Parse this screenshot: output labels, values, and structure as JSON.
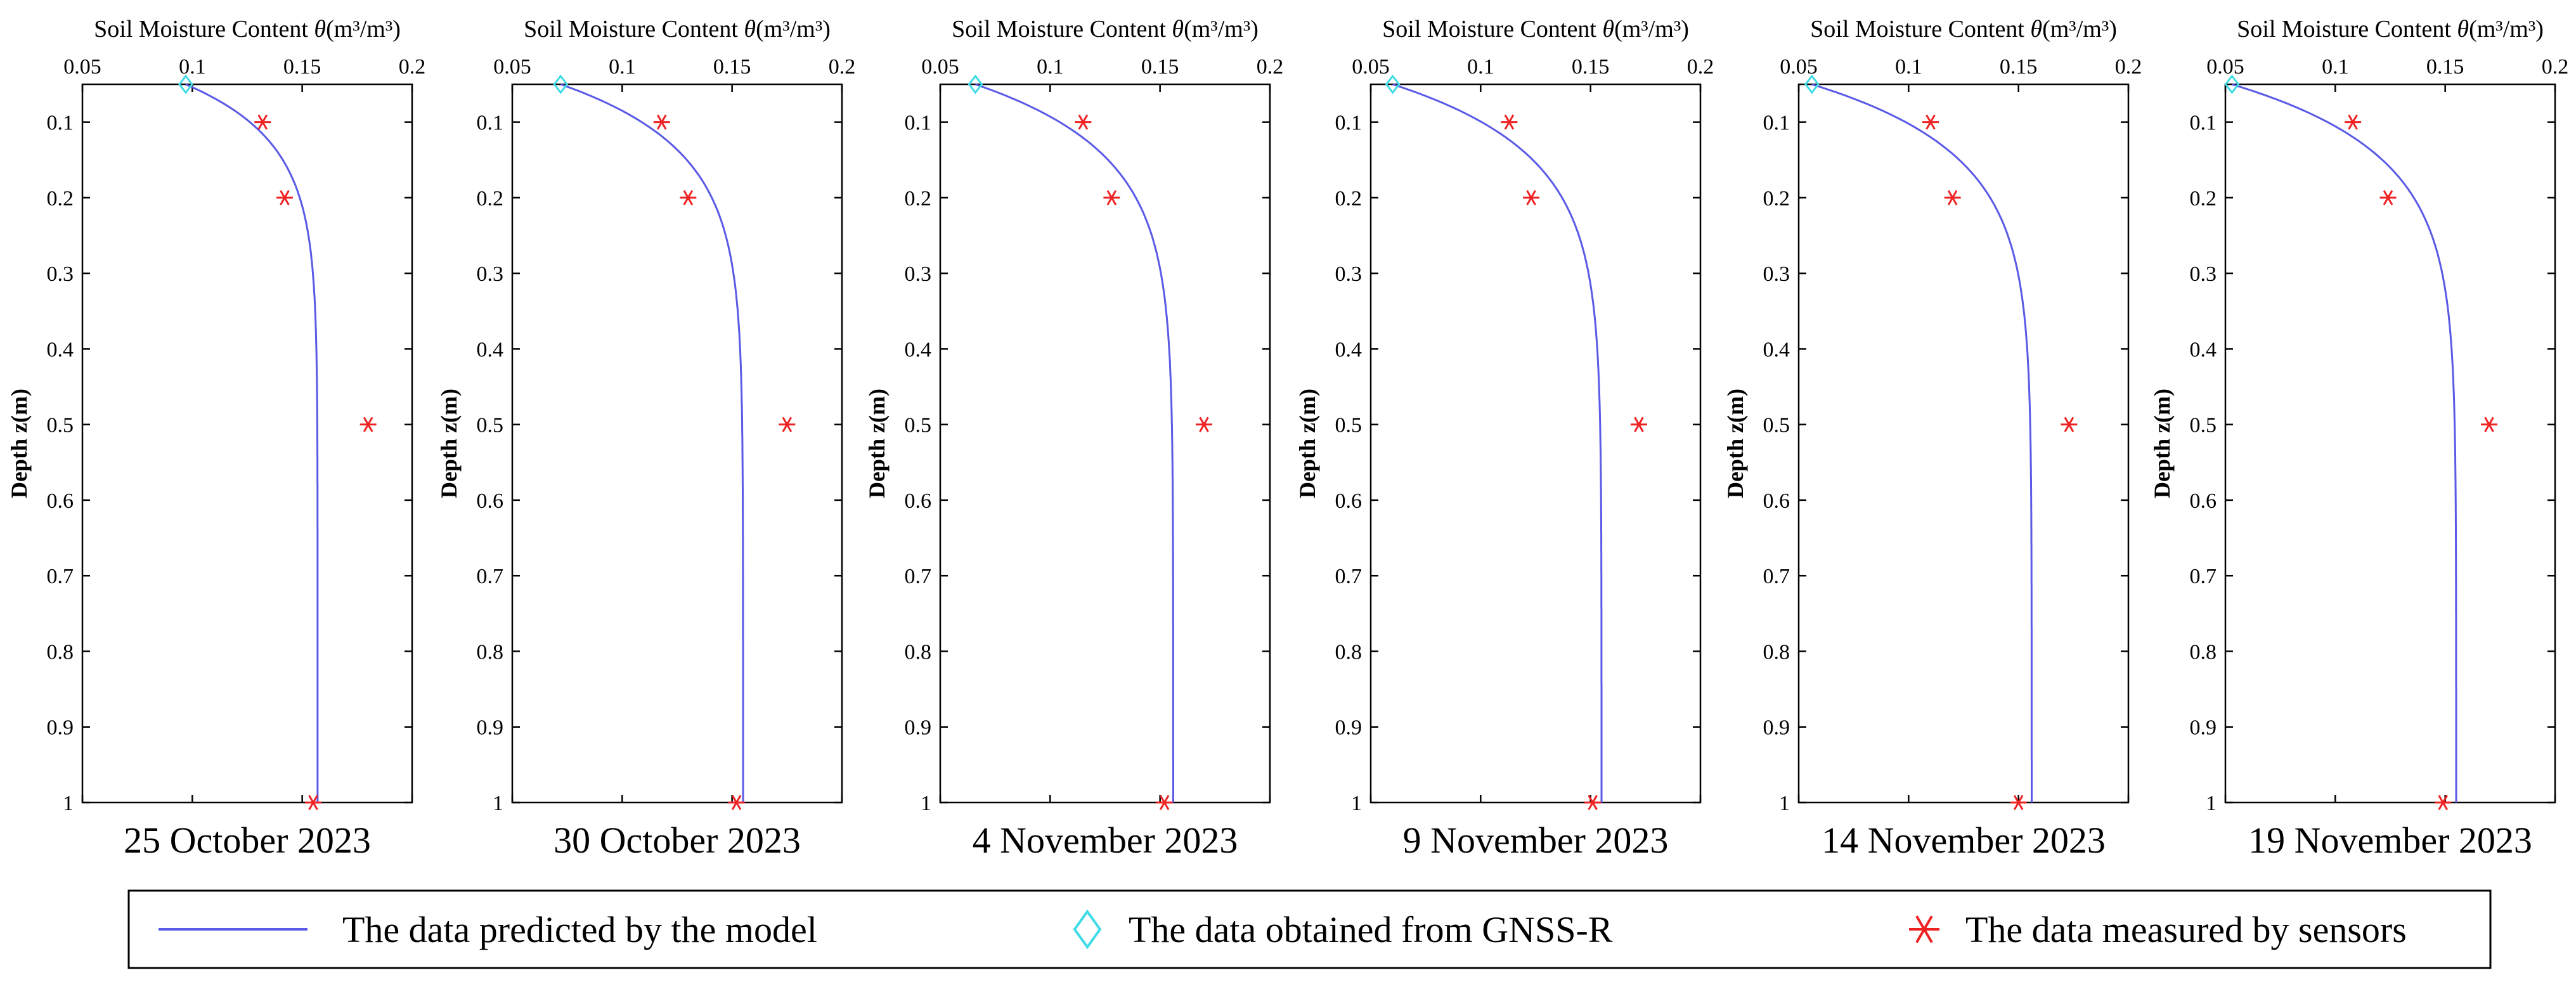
{
  "chart_data": [
    {
      "type": "line",
      "title": "25 October 2023",
      "xlabel_text": "Soil Moisture Content ",
      "xlabel_symbol": "θ",
      "xlabel_unit": "(m³/m³)",
      "ylabel": "Depth z(m)",
      "xlim": [
        0.05,
        0.2
      ],
      "ylim": [
        0.05,
        1
      ],
      "xticks": [
        0.05,
        0.1,
        0.15,
        0.2
      ],
      "yticks": [
        0.1,
        0.2,
        0.3,
        0.4,
        0.5,
        0.6,
        0.7,
        0.8,
        0.9,
        1
      ],
      "model": {
        "surface": 0.097,
        "deep": 0.157,
        "decay": 0.075
      },
      "gnss": [
        {
          "x": 0.097,
          "y": 0.05
        }
      ],
      "sensors": [
        {
          "x": 0.132,
          "y": 0.1
        },
        {
          "x": 0.142,
          "y": 0.2
        },
        {
          "x": 0.18,
          "y": 0.5
        },
        {
          "x": 0.155,
          "y": 1.0
        }
      ]
    },
    {
      "type": "line",
      "title": "30 October 2023",
      "xlabel_text": "Soil Moisture Content ",
      "xlabel_symbol": "θ",
      "xlabel_unit": "(m³/m³)",
      "ylabel": "Depth z(m)",
      "xlim": [
        0.05,
        0.2
      ],
      "ylim": [
        0.05,
        1
      ],
      "xticks": [
        0.05,
        0.1,
        0.15,
        0.2
      ],
      "yticks": [
        0.1,
        0.2,
        0.3,
        0.4,
        0.5,
        0.6,
        0.7,
        0.8,
        0.9,
        1
      ],
      "model": {
        "surface": 0.072,
        "deep": 0.155,
        "decay": 0.085
      },
      "gnss": [
        {
          "x": 0.072,
          "y": 0.05
        }
      ],
      "sensors": [
        {
          "x": 0.118,
          "y": 0.1
        },
        {
          "x": 0.13,
          "y": 0.2
        },
        {
          "x": 0.175,
          "y": 0.5
        },
        {
          "x": 0.152,
          "y": 1.0
        }
      ]
    },
    {
      "type": "line",
      "title": "4 November 2023",
      "xlabel_text": "Soil Moisture Content ",
      "xlabel_symbol": "θ",
      "xlabel_unit": "(m³/m³)",
      "ylabel": "Depth z(m)",
      "xlim": [
        0.05,
        0.2
      ],
      "ylim": [
        0.05,
        1
      ],
      "xticks": [
        0.05,
        0.1,
        0.15,
        0.2
      ],
      "yticks": [
        0.1,
        0.2,
        0.3,
        0.4,
        0.5,
        0.6,
        0.7,
        0.8,
        0.9,
        1
      ],
      "model": {
        "surface": 0.066,
        "deep": 0.156,
        "decay": 0.09
      },
      "gnss": [
        {
          "x": 0.066,
          "y": 0.05
        }
      ],
      "sensors": [
        {
          "x": 0.115,
          "y": 0.1
        },
        {
          "x": 0.128,
          "y": 0.2
        },
        {
          "x": 0.17,
          "y": 0.5
        },
        {
          "x": 0.152,
          "y": 1.0
        }
      ]
    },
    {
      "type": "line",
      "title": "9 November 2023",
      "xlabel_text": "Soil Moisture Content ",
      "xlabel_symbol": "θ",
      "xlabel_unit": "(m³/m³)",
      "ylabel": "Depth z(m)",
      "xlim": [
        0.05,
        0.2
      ],
      "ylim": [
        0.05,
        1
      ],
      "xticks": [
        0.05,
        0.1,
        0.15,
        0.2
      ],
      "yticks": [
        0.1,
        0.2,
        0.3,
        0.4,
        0.5,
        0.6,
        0.7,
        0.8,
        0.9,
        1
      ],
      "model": {
        "surface": 0.06,
        "deep": 0.155,
        "decay": 0.09
      },
      "gnss": [
        {
          "x": 0.06,
          "y": 0.05
        }
      ],
      "sensors": [
        {
          "x": 0.113,
          "y": 0.1
        },
        {
          "x": 0.123,
          "y": 0.2
        },
        {
          "x": 0.172,
          "y": 0.5
        },
        {
          "x": 0.151,
          "y": 1.0
        }
      ]
    },
    {
      "type": "line",
      "title": "14 November 2023",
      "xlabel_text": "Soil Moisture Content ",
      "xlabel_symbol": "θ",
      "xlabel_unit": "(m³/m³)",
      "ylabel": "Depth z(m)",
      "xlim": [
        0.05,
        0.2
      ],
      "ylim": [
        0.05,
        1
      ],
      "xticks": [
        0.05,
        0.1,
        0.15,
        0.2
      ],
      "yticks": [
        0.1,
        0.2,
        0.3,
        0.4,
        0.5,
        0.6,
        0.7,
        0.8,
        0.9,
        1
      ],
      "model": {
        "surface": 0.056,
        "deep": 0.156,
        "decay": 0.09
      },
      "gnss": [
        {
          "x": 0.056,
          "y": 0.05
        }
      ],
      "sensors": [
        {
          "x": 0.11,
          "y": 0.1
        },
        {
          "x": 0.12,
          "y": 0.2
        },
        {
          "x": 0.173,
          "y": 0.5
        },
        {
          "x": 0.15,
          "y": 1.0
        }
      ]
    },
    {
      "type": "line",
      "title": "19 November 2023",
      "xlabel_text": "Soil Moisture Content ",
      "xlabel_symbol": "θ",
      "xlabel_unit": "(m³/m³)",
      "ylabel": "Depth z(m)",
      "xlim": [
        0.05,
        0.2
      ],
      "ylim": [
        0.05,
        1
      ],
      "xticks": [
        0.05,
        0.1,
        0.15,
        0.2
      ],
      "yticks": [
        0.1,
        0.2,
        0.3,
        0.4,
        0.5,
        0.6,
        0.7,
        0.8,
        0.9,
        1
      ],
      "model": {
        "surface": 0.053,
        "deep": 0.155,
        "decay": 0.09
      },
      "gnss": [
        {
          "x": 0.053,
          "y": 0.05
        }
      ],
      "sensors": [
        {
          "x": 0.108,
          "y": 0.1
        },
        {
          "x": 0.124,
          "y": 0.2
        },
        {
          "x": 0.17,
          "y": 0.5
        },
        {
          "x": 0.149,
          "y": 1.0
        }
      ]
    }
  ],
  "legend": {
    "items": [
      {
        "label": "The data predicted by the model",
        "symbol": "line",
        "color": "#5a5ae6"
      },
      {
        "label": "The data obtained from GNSS-R",
        "symbol": "diamond",
        "color": "#3fdbe6"
      },
      {
        "label": "The data measured by sensors",
        "symbol": "asterisk",
        "color": "#ee2222"
      }
    ]
  },
  "colors": {
    "model_line": "#5a5ae6",
    "gnss_marker": "#3fdbe6",
    "sensor_marker": "#ee2222",
    "axes": "#000000"
  }
}
